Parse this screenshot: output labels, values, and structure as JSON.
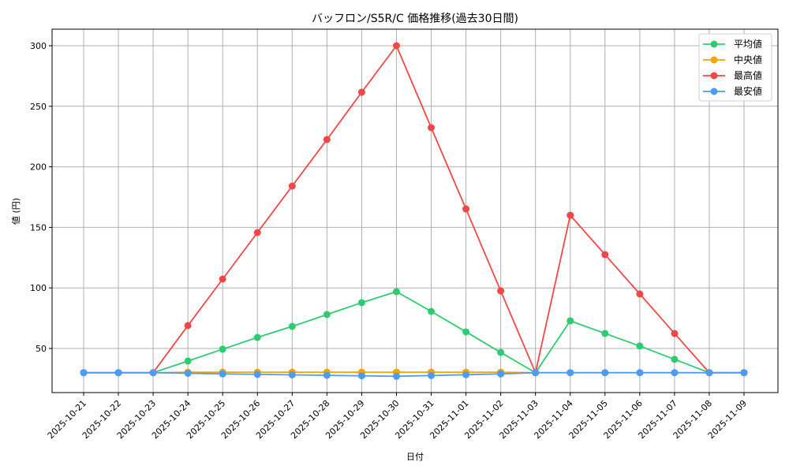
{
  "chart_data": {
    "type": "line",
    "title": "バッフロン/S5R/C 価格推移(過去30日間)",
    "xlabel": "日付",
    "ylabel": "値 (円)",
    "ylim": [
      13,
      314
    ],
    "yticks": [
      50,
      100,
      150,
      200,
      250,
      300
    ],
    "grid": true,
    "legend_position": "upper right",
    "categories": [
      "2025-10-21",
      "2025-10-22",
      "2025-10-23",
      "2025-10-24",
      "2025-10-25",
      "2025-10-26",
      "2025-10-27",
      "2025-10-28",
      "2025-10-29",
      "2025-10-30",
      "2025-10-31",
      "2025-11-01",
      "2025-11-02",
      "2025-11-03",
      "2025-11-04",
      "2025-11-05",
      "2025-11-06",
      "2025-11-07",
      "2025-11-08",
      "2025-11-09"
    ],
    "series": [
      {
        "name": "平均値",
        "color": "#2ecc71",
        "values": [
          30,
          30,
          30,
          39.6,
          49.4,
          59.1,
          68.2,
          78,
          87.8,
          96.9,
          80.6,
          63.7,
          46.7,
          30,
          72.8,
          62.4,
          52,
          41,
          30,
          30
        ]
      },
      {
        "name": "中央値",
        "color": "#f5a300",
        "values": [
          30,
          30,
          30,
          30.4,
          30.4,
          30.4,
          30.4,
          30.4,
          30.4,
          30.4,
          30.4,
          30.4,
          30.4,
          30,
          30,
          30,
          30,
          30,
          30,
          30
        ]
      },
      {
        "name": "最高値",
        "color": "#f04848",
        "values": [
          30,
          30,
          30,
          68.9,
          107.3,
          145.7,
          184.1,
          222.5,
          261.6,
          300,
          232.3,
          165.2,
          97.5,
          30,
          160,
          127.5,
          95,
          62.4,
          30,
          30
        ]
      },
      {
        "name": "最安値",
        "color": "#4c9bf5",
        "values": [
          30,
          30,
          30,
          29.5,
          29,
          28.6,
          28.2,
          27.8,
          27.4,
          27,
          27.6,
          28.3,
          29,
          30,
          30,
          30,
          30,
          30,
          30,
          30
        ]
      }
    ]
  }
}
